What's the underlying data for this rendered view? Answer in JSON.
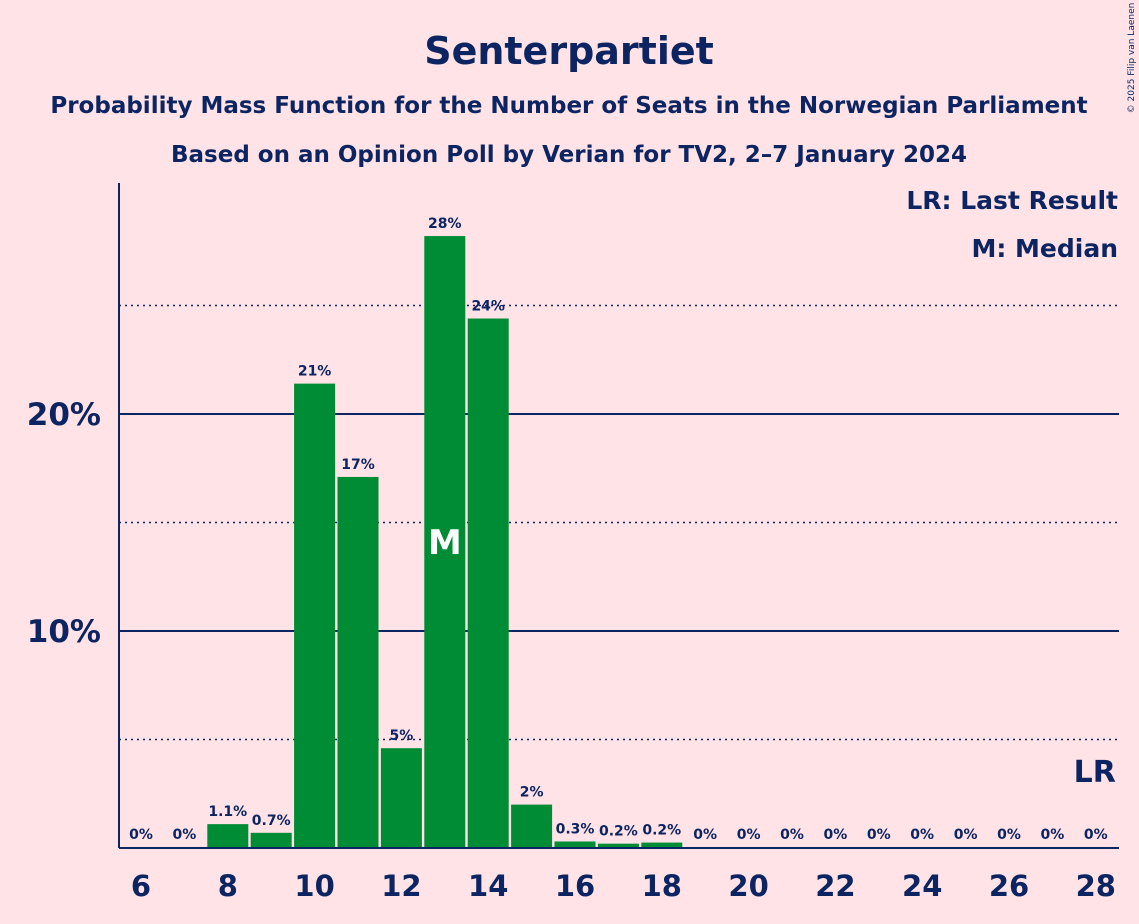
{
  "chart_data": {
    "type": "bar",
    "title": "Senterpartiet",
    "subtitle": "Probability Mass Function for the Number of Seats in the Norwegian Parliament",
    "subtitle2": "Based on an Opinion Poll by Verian for TV2, 2–7 January 2024",
    "copyright": "© 2025 Filip van Laenen",
    "legend": [
      "LR: Last Result",
      "M: Median"
    ],
    "legend_position": "top-right",
    "x": [
      6,
      7,
      8,
      9,
      10,
      11,
      12,
      13,
      14,
      15,
      16,
      17,
      18,
      19,
      20,
      21,
      22,
      23,
      24,
      25,
      26,
      27,
      28
    ],
    "values": [
      0,
      0,
      1.1,
      0.7,
      21.4,
      17.1,
      4.6,
      28.2,
      24.4,
      2.0,
      0.3,
      0.2,
      0.25,
      0,
      0,
      0,
      0,
      0,
      0,
      0,
      0,
      0,
      0
    ],
    "labels": [
      "0%",
      "0%",
      "1.1%",
      "0.7%",
      "21%",
      "17%",
      "5%",
      "28%",
      "24%",
      "2%",
      "0.3%",
      "0.2%",
      "0.2%",
      "0%",
      "0%",
      "0%",
      "0%",
      "0%",
      "0%",
      "0%",
      "0%",
      "0%",
      "0%"
    ],
    "x_tick_labels": [
      "6",
      "8",
      "10",
      "12",
      "14",
      "16",
      "18",
      "20",
      "22",
      "24",
      "26",
      "28"
    ],
    "x_tick_values": [
      6,
      8,
      10,
      12,
      14,
      16,
      18,
      20,
      22,
      24,
      26,
      28
    ],
    "y_tick_labels": [
      "10%",
      "20%"
    ],
    "y_tick_values": [
      10,
      20
    ],
    "y_minor_gridlines": [
      5,
      15,
      25
    ],
    "ylim": [
      0,
      30.5
    ],
    "median_seat": 13,
    "median_marker": "M",
    "last_result_seat": 28,
    "last_result_marker": "LR",
    "bar_color": "#008C35",
    "text_color": "#0C2461",
    "background_color": "#FFE3E6"
  }
}
